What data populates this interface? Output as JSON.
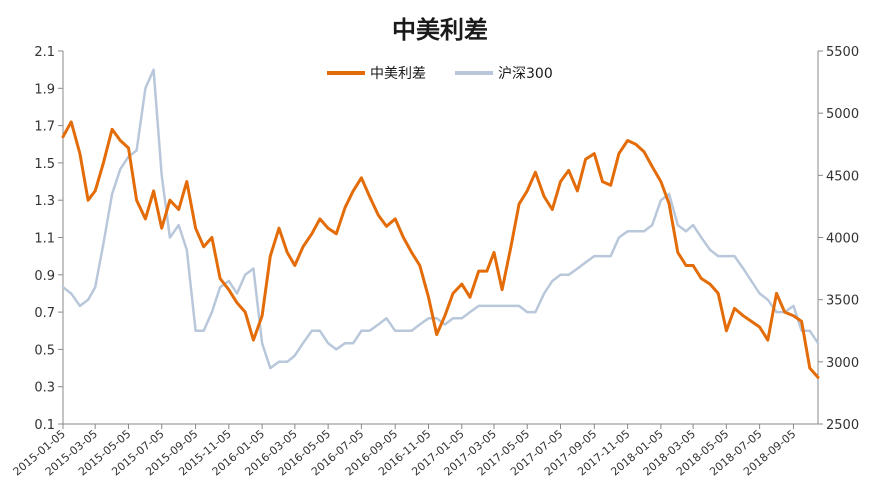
{
  "chart_data": {
    "type": "line",
    "title": "中美利差",
    "legend_position": "top-center",
    "grid": false,
    "x_tick_labels": [
      "2015-01-05",
      "2015-03-05",
      "2015-05-05",
      "2015-07-05",
      "2015-09-05",
      "2015-11-05",
      "2016-01-05",
      "2016-03-05",
      "2016-05-05",
      "2016-07-05",
      "2016-09-05",
      "2016-11-05",
      "2017-01-05",
      "2017-03-05",
      "2017-05-05",
      "2017-07-05",
      "2017-09-05",
      "2017-11-05",
      "2018-01-05",
      "2018-03-05",
      "2018-05-05",
      "2018-07-05",
      "2018-09-05"
    ],
    "y_left": {
      "ylim": [
        0.1,
        2.1
      ],
      "ticks": [
        "0.1",
        "0.3",
        "0.5",
        "0.7",
        "0.9",
        "1.1",
        "1.3",
        "1.5",
        "1.7",
        "1.9",
        "2.1"
      ]
    },
    "y_right": {
      "ylim": [
        2500,
        5500
      ],
      "ticks": [
        "2500",
        "3000",
        "3500",
        "4000",
        "4500",
        "5000",
        "5500"
      ]
    },
    "series": [
      {
        "name": "中美利差",
        "axis": "left",
        "color": "#E36C09",
        "x": [
          "2015-01-05",
          "2015-01-20",
          "2015-02-05",
          "2015-02-20",
          "2015-03-05",
          "2015-03-20",
          "2015-04-05",
          "2015-04-20",
          "2015-05-05",
          "2015-05-20",
          "2015-06-05",
          "2015-06-20",
          "2015-07-05",
          "2015-07-20",
          "2015-08-05",
          "2015-08-20",
          "2015-09-05",
          "2015-09-20",
          "2015-10-05",
          "2015-10-20",
          "2015-11-05",
          "2015-11-20",
          "2015-12-05",
          "2015-12-20",
          "2016-01-05",
          "2016-01-20",
          "2016-02-05",
          "2016-02-20",
          "2016-03-05",
          "2016-03-20",
          "2016-04-05",
          "2016-04-20",
          "2016-05-05",
          "2016-05-20",
          "2016-06-05",
          "2016-06-20",
          "2016-07-05",
          "2016-07-20",
          "2016-08-05",
          "2016-08-20",
          "2016-09-05",
          "2016-09-20",
          "2016-10-05",
          "2016-10-20",
          "2016-11-05",
          "2016-11-20",
          "2016-12-05",
          "2016-12-20",
          "2017-01-05",
          "2017-01-20",
          "2017-02-05",
          "2017-02-20",
          "2017-03-05",
          "2017-03-20",
          "2017-04-05",
          "2017-04-20",
          "2017-05-05",
          "2017-05-20",
          "2017-06-05",
          "2017-06-20",
          "2017-07-05",
          "2017-07-20",
          "2017-08-05",
          "2017-08-20",
          "2017-09-05",
          "2017-09-20",
          "2017-10-05",
          "2017-10-20",
          "2017-11-05",
          "2017-11-20",
          "2017-12-05",
          "2017-12-20",
          "2018-01-05",
          "2018-01-20",
          "2018-02-05",
          "2018-02-20",
          "2018-03-05",
          "2018-03-20",
          "2018-04-05",
          "2018-04-20",
          "2018-05-05",
          "2018-05-20",
          "2018-06-05",
          "2018-06-20",
          "2018-07-05",
          "2018-07-20",
          "2018-08-05",
          "2018-08-20",
          "2018-09-05",
          "2018-09-20",
          "2018-10-05",
          "2018-10-20"
        ],
        "values": [
          1.64,
          1.72,
          1.55,
          1.3,
          1.35,
          1.5,
          1.68,
          1.62,
          1.58,
          1.3,
          1.2,
          1.35,
          1.15,
          1.3,
          1.25,
          1.4,
          1.15,
          1.05,
          1.1,
          0.88,
          0.82,
          0.75,
          0.7,
          0.55,
          0.68,
          1.0,
          1.15,
          1.02,
          0.95,
          1.05,
          1.12,
          1.2,
          1.15,
          1.12,
          1.26,
          1.35,
          1.42,
          1.32,
          1.22,
          1.16,
          1.2,
          1.1,
          1.02,
          0.95,
          0.78,
          0.58,
          0.68,
          0.8,
          0.85,
          0.78,
          0.92,
          0.92,
          1.02,
          0.82,
          1.05,
          1.28,
          1.35,
          1.45,
          1.32,
          1.25,
          1.4,
          1.46,
          1.35,
          1.52,
          1.55,
          1.4,
          1.38,
          1.55,
          1.62,
          1.6,
          1.56,
          1.48,
          1.4,
          1.28,
          1.02,
          0.95,
          0.95,
          0.88,
          0.85,
          0.8,
          0.6,
          0.72,
          0.68,
          0.65,
          0.62,
          0.55,
          0.8,
          0.7,
          0.68,
          0.65,
          0.4,
          0.35
        ]
      },
      {
        "name": "沪深300",
        "axis": "right",
        "color": "#B9C7DB",
        "x": [
          "2015-01-05",
          "2015-01-20",
          "2015-02-05",
          "2015-02-20",
          "2015-03-05",
          "2015-03-20",
          "2015-04-05",
          "2015-04-20",
          "2015-05-05",
          "2015-05-20",
          "2015-06-05",
          "2015-06-20",
          "2015-07-05",
          "2015-07-20",
          "2015-08-05",
          "2015-08-20",
          "2015-09-05",
          "2015-09-20",
          "2015-10-05",
          "2015-10-20",
          "2015-11-05",
          "2015-11-20",
          "2015-12-05",
          "2015-12-20",
          "2016-01-05",
          "2016-01-20",
          "2016-02-05",
          "2016-02-20",
          "2016-03-05",
          "2016-03-20",
          "2016-04-05",
          "2016-04-20",
          "2016-05-05",
          "2016-05-20",
          "2016-06-05",
          "2016-06-20",
          "2016-07-05",
          "2016-07-20",
          "2016-08-05",
          "2016-08-20",
          "2016-09-05",
          "2016-09-20",
          "2016-10-05",
          "2016-10-20",
          "2016-11-05",
          "2016-11-20",
          "2016-12-05",
          "2016-12-20",
          "2017-01-05",
          "2017-01-20",
          "2017-02-05",
          "2017-02-20",
          "2017-03-05",
          "2017-03-20",
          "2017-04-05",
          "2017-04-20",
          "2017-05-05",
          "2017-05-20",
          "2017-06-05",
          "2017-06-20",
          "2017-07-05",
          "2017-07-20",
          "2017-08-05",
          "2017-08-20",
          "2017-09-05",
          "2017-09-20",
          "2017-10-05",
          "2017-10-20",
          "2017-11-05",
          "2017-11-20",
          "2017-12-05",
          "2017-12-20",
          "2018-01-05",
          "2018-01-20",
          "2018-02-05",
          "2018-02-20",
          "2018-03-05",
          "2018-03-20",
          "2018-04-05",
          "2018-04-20",
          "2018-05-05",
          "2018-05-20",
          "2018-06-05",
          "2018-06-20",
          "2018-07-05",
          "2018-07-20",
          "2018-08-05",
          "2018-08-20",
          "2018-09-05",
          "2018-09-20",
          "2018-10-05",
          "2018-10-20"
        ],
        "values": [
          3600,
          3550,
          3450,
          3500,
          3600,
          3950,
          4350,
          4550,
          4650,
          4700,
          5200,
          5350,
          4500,
          4000,
          4100,
          3900,
          3250,
          3250,
          3400,
          3600,
          3650,
          3550,
          3700,
          3750,
          3150,
          2950,
          3000,
          3000,
          3050,
          3150,
          3250,
          3250,
          3150,
          3100,
          3150,
          3150,
          3250,
          3250,
          3300,
          3350,
          3250,
          3250,
          3250,
          3300,
          3350,
          3350,
          3300,
          3350,
          3350,
          3400,
          3450,
          3450,
          3450,
          3450,
          3450,
          3450,
          3400,
          3400,
          3550,
          3650,
          3700,
          3700,
          3750,
          3800,
          3850,
          3850,
          3850,
          4000,
          4050,
          4050,
          4050,
          4100,
          4300,
          4350,
          4100,
          4050,
          4100,
          4000,
          3900,
          3850,
          3850,
          3850,
          3750,
          3650,
          3550,
          3500,
          3400,
          3400,
          3450,
          3250,
          3250,
          3150
        ]
      }
    ]
  }
}
